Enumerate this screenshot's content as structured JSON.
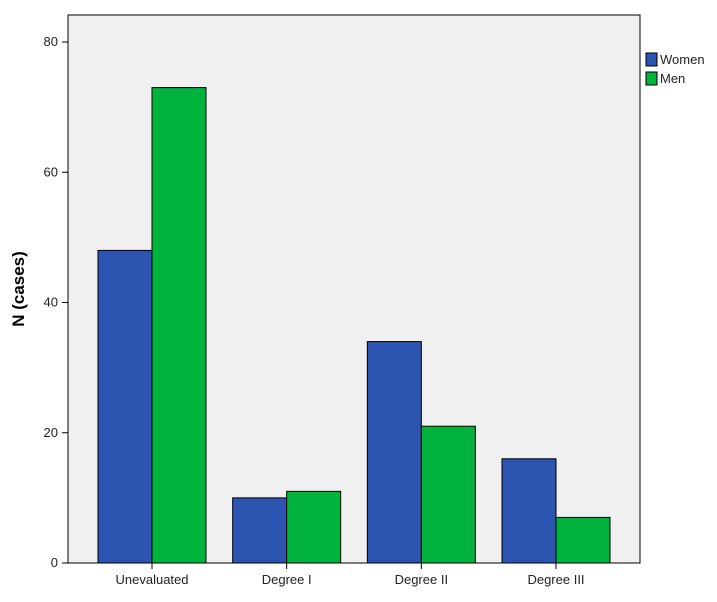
{
  "chart_data": {
    "type": "bar",
    "title": "",
    "xlabel": "",
    "ylabel": "N (cases)",
    "categories": [
      "Unevaluated",
      "Degree I",
      "Degree II",
      "Degree III"
    ],
    "series": [
      {
        "name": "Women",
        "values": [
          48,
          10,
          34,
          16
        ],
        "color": "#2b55b0"
      },
      {
        "name": "Men",
        "values": [
          73,
          11,
          21,
          7
        ],
        "color": "#00b33c"
      }
    ],
    "ylim": [
      0,
      80
    ],
    "yticks": [
      0,
      20,
      40,
      60,
      80
    ],
    "grid": false,
    "legend": "top-right",
    "plot_background": "#f0f0f0"
  }
}
